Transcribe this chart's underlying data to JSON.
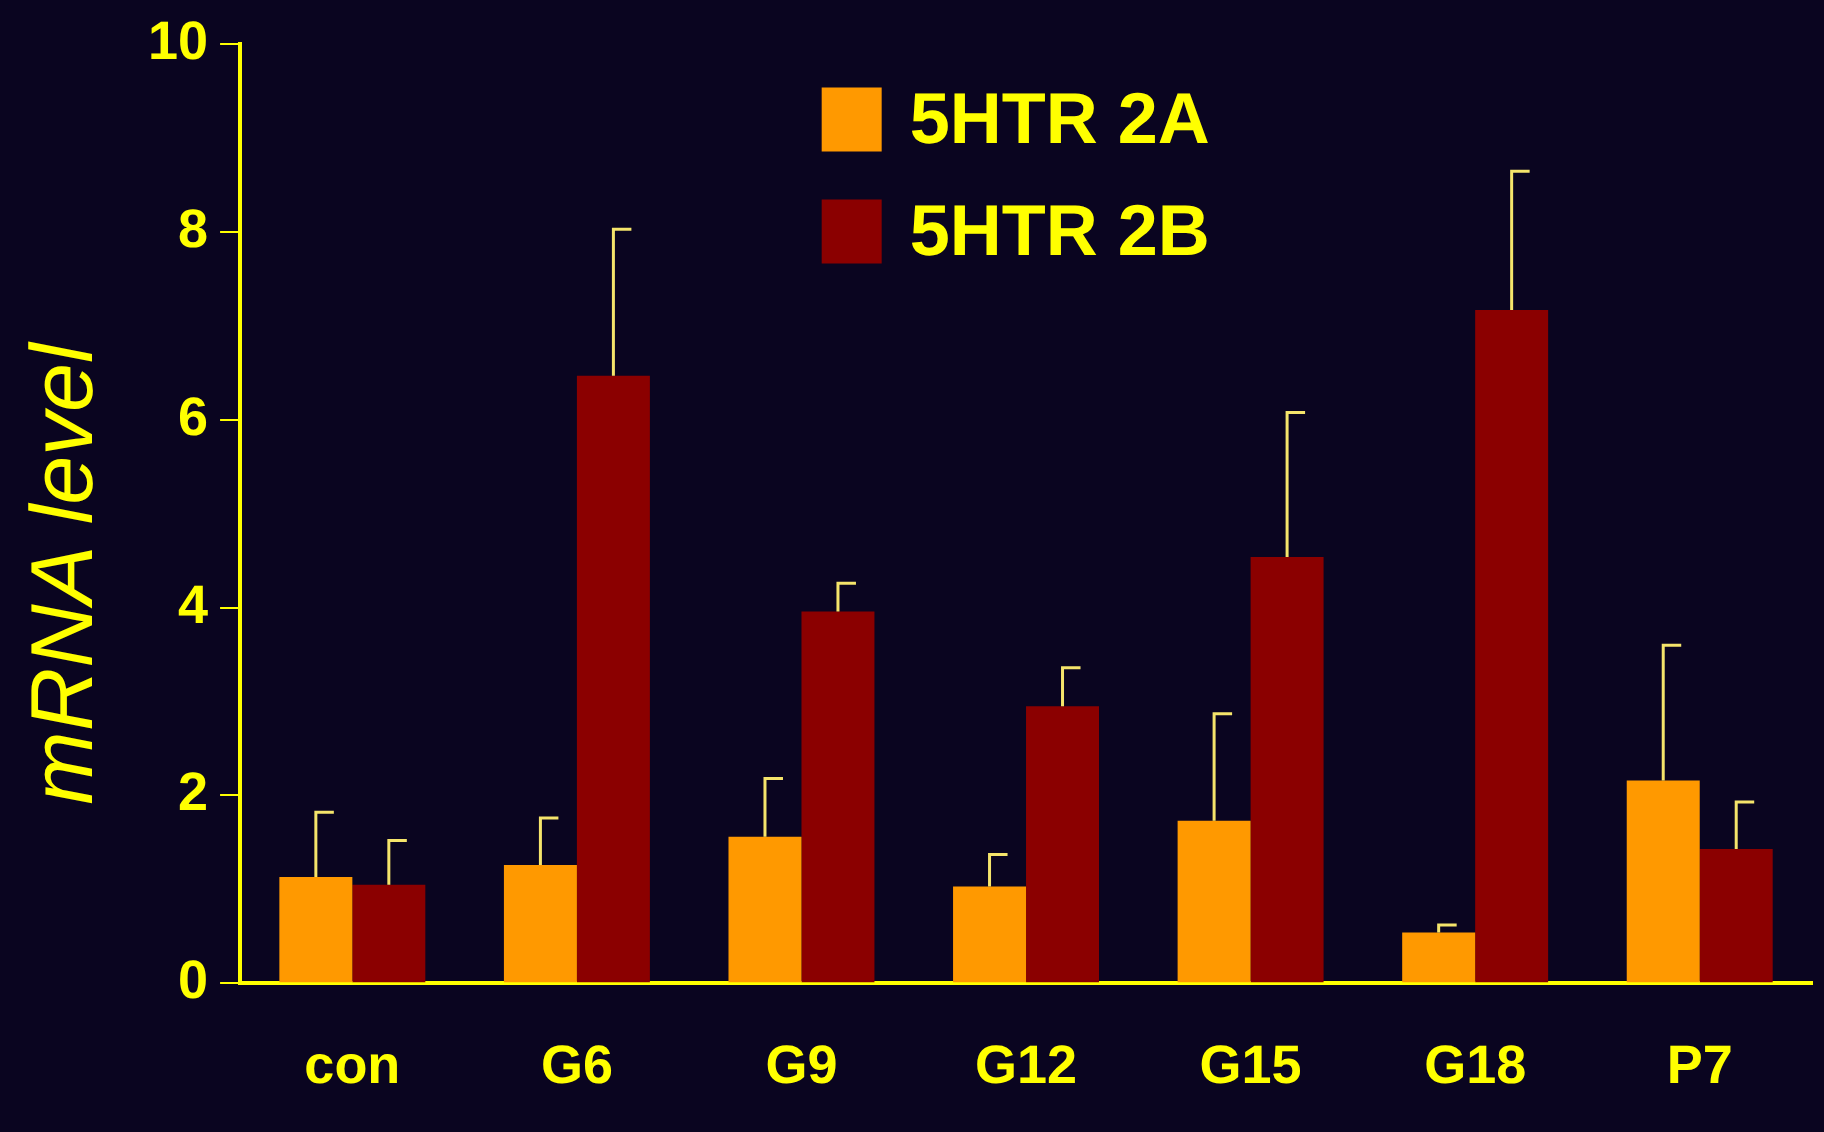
{
  "chart_data": {
    "type": "bar",
    "ylabel": "mRNA level",
    "categories": [
      "con",
      "G6",
      "G9",
      "G12",
      "G15",
      "G18",
      "P7"
    ],
    "series": [
      {
        "name": "5HTR 2A",
        "color": "#ff9900",
        "values": [
          1.13,
          1.26,
          1.56,
          1.03,
          1.73,
          0.54,
          2.16
        ],
        "errors": [
          [
            1.13,
            1.82
          ],
          [
            1.26,
            1.76
          ],
          [
            1.56,
            2.18
          ],
          [
            1.03,
            1.37
          ],
          [
            1.73,
            2.87
          ],
          [
            0.54,
            0.62
          ],
          [
            2.16,
            3.6
          ]
        ]
      },
      {
        "name": "5HTR 2B",
        "color": "#8b0000",
        "values": [
          1.05,
          6.47,
          3.96,
          2.95,
          4.54,
          7.17,
          1.43
        ],
        "errors": [
          [
            1.05,
            1.52
          ],
          [
            6.47,
            8.03
          ],
          [
            3.96,
            4.26
          ],
          [
            2.95,
            3.36
          ],
          [
            4.54,
            6.08
          ],
          [
            7.17,
            8.65
          ],
          [
            1.43,
            1.93
          ]
        ]
      }
    ],
    "ylim": [
      0,
      10
    ],
    "yticks": [
      0,
      2,
      4,
      6,
      8,
      10
    ],
    "grid": false,
    "legend": "top"
  }
}
